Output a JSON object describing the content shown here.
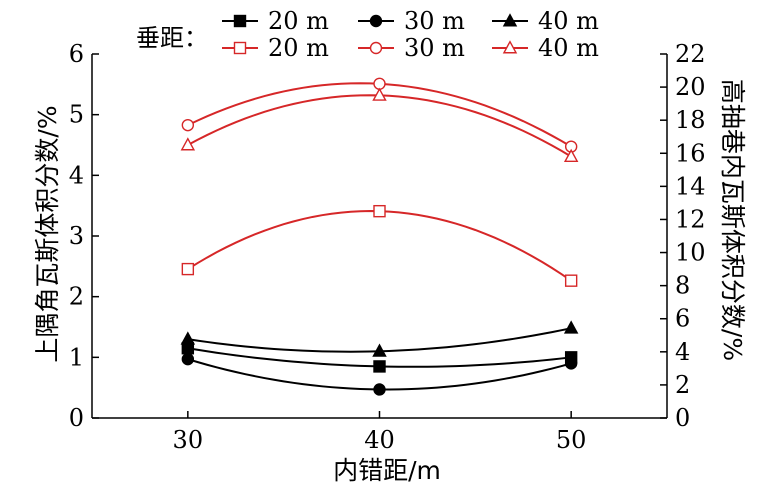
{
  "chart_data": {
    "type": "line",
    "title": "",
    "xlabel": "内错距/m",
    "ylabel_left": "上隅角瓦斯体积分数/%",
    "ylabel_right": "高抽巷内瓦斯体积分数/%",
    "categories": [
      30,
      40,
      50
    ],
    "xlim": [
      25,
      55
    ],
    "xticks": [
      "30",
      "40",
      "50"
    ],
    "ylim_left": [
      0,
      6
    ],
    "yticks_left": [
      "0",
      "1",
      "2",
      "3",
      "4",
      "5",
      "6"
    ],
    "ylim_right": [
      0,
      22
    ],
    "yticks_right": [
      "0",
      "2",
      "4",
      "6",
      "8",
      "10",
      "12",
      "14",
      "16",
      "18",
      "20",
      "22"
    ],
    "grid": false,
    "legend": {
      "title": "垂距：",
      "placement": "top",
      "entries": [
        "20 m",
        "30 m",
        "40 m",
        "20 m",
        "30 m",
        "40 m"
      ]
    },
    "series": [
      {
        "name": "20 m",
        "axis": "left",
        "color": "#000000",
        "marker": "square-filled",
        "values": [
          1.15,
          0.85,
          1.0
        ]
      },
      {
        "name": "30 m",
        "axis": "left",
        "color": "#000000",
        "marker": "circle-filled",
        "values": [
          0.97,
          0.47,
          0.9
        ]
      },
      {
        "name": "40 m",
        "axis": "left",
        "color": "#000000",
        "marker": "triangle-filled",
        "values": [
          1.3,
          1.1,
          1.48
        ]
      },
      {
        "name": "20 m",
        "axis": "right",
        "color": "#d62728",
        "marker": "square-open",
        "values": [
          9.0,
          12.5,
          8.3
        ]
      },
      {
        "name": "30 m",
        "axis": "right",
        "color": "#d62728",
        "marker": "circle-open",
        "values": [
          17.7,
          20.2,
          16.4
        ]
      },
      {
        "name": "40 m",
        "axis": "right",
        "color": "#d62728",
        "marker": "triangle-open",
        "values": [
          16.5,
          19.5,
          15.8
        ]
      }
    ]
  }
}
